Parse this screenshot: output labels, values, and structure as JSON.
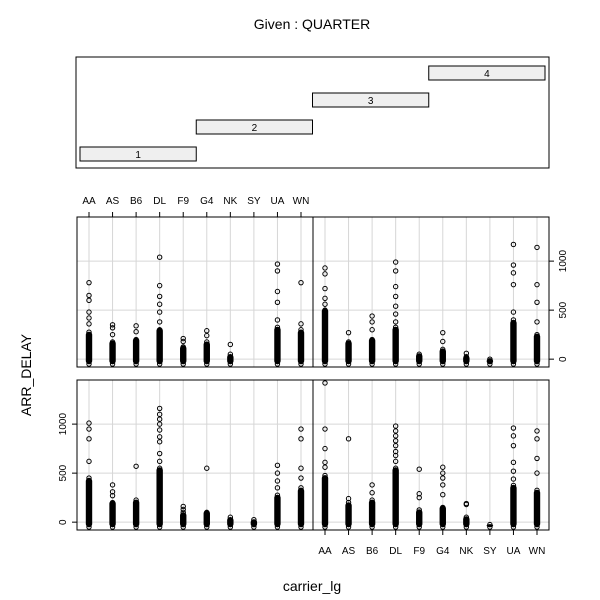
{
  "chart_data": {
    "type": "scatter",
    "given": {
      "title": "Given : QUARTER",
      "levels": [
        "1",
        "2",
        "3",
        "4"
      ]
    },
    "xlabel": "carrier_lg",
    "ylabel": "ARR_DELAY",
    "categories": [
      "AA",
      "AS",
      "B6",
      "DL",
      "F9",
      "G4",
      "NK",
      "SY",
      "UA",
      "WN"
    ],
    "ylim": [
      -80,
      1450
    ],
    "yticks": [
      0,
      500,
      1000
    ],
    "grid": true,
    "panels": [
      {
        "quarter": "1",
        "position": "bottom-left",
        "series": [
          {
            "category": "AA",
            "max": 1010,
            "dense_to": 450,
            "outliers": [
              620,
              850,
              950,
              1010
            ]
          },
          {
            "category": "AS",
            "max": 380,
            "dense_to": 220,
            "outliers": [
              270,
              310,
              380
            ]
          },
          {
            "category": "B6",
            "max": 570,
            "dense_to": 230,
            "outliers": [
              570
            ]
          },
          {
            "category": "DL",
            "max": 1160,
            "dense_to": 560,
            "outliers": [
              620,
              700,
              820,
              870,
              940,
              1000,
              1050,
              1100,
              1160
            ]
          },
          {
            "category": "F9",
            "max": 160,
            "dense_to": 100,
            "outliers": [
              130,
              160
            ]
          },
          {
            "category": "G4",
            "max": 550,
            "dense_to": 120,
            "outliers": [
              550
            ]
          },
          {
            "category": "NK",
            "max": 60,
            "dense_to": 50,
            "outliers": []
          },
          {
            "category": "SY",
            "max": 40,
            "dense_to": 30,
            "outliers": []
          },
          {
            "category": "UA",
            "max": 580,
            "dense_to": 280,
            "outliers": [
              350,
              420,
              500,
              580
            ]
          },
          {
            "category": "WN",
            "max": 950,
            "dense_to": 350,
            "outliers": [
              450,
              550,
              850,
              950
            ]
          }
        ]
      },
      {
        "quarter": "2",
        "position": "bottom-right",
        "series": [
          {
            "category": "AA",
            "max": 1420,
            "dense_to": 480,
            "outliers": [
              560,
              610,
              750,
              950,
              1420
            ]
          },
          {
            "category": "AS",
            "max": 850,
            "dense_to": 200,
            "outliers": [
              240,
              850
            ]
          },
          {
            "category": "B6",
            "max": 380,
            "dense_to": 230,
            "outliers": [
              300,
              380
            ]
          },
          {
            "category": "DL",
            "max": 980,
            "dense_to": 560,
            "outliers": [
              620,
              680,
              720,
              780,
              830,
              880,
              930,
              980
            ]
          },
          {
            "category": "F9",
            "max": 540,
            "dense_to": 130,
            "outliers": [
              250,
              290,
              540
            ]
          },
          {
            "category": "G4",
            "max": 560,
            "dense_to": 170,
            "outliers": [
              280,
              380,
              450,
              500,
              560
            ]
          },
          {
            "category": "NK",
            "max": 190,
            "dense_to": 60,
            "outliers": [
              180,
              190
            ]
          },
          {
            "category": "SY",
            "max": -10,
            "dense_to": -20,
            "outliers": []
          },
          {
            "category": "UA",
            "max": 960,
            "dense_to": 380,
            "outliers": [
              440,
              520,
              610,
              780,
              880,
              960
            ]
          },
          {
            "category": "WN",
            "max": 930,
            "dense_to": 330,
            "outliers": [
              500,
              650,
              850,
              930
            ]
          }
        ]
      },
      {
        "quarter": "3",
        "position": "top-left",
        "series": [
          {
            "category": "AA",
            "max": 780,
            "dense_to": 280,
            "outliers": [
              360,
              420,
              480,
              600,
              650,
              780
            ]
          },
          {
            "category": "AS",
            "max": 350,
            "dense_to": 190,
            "outliers": [
              250,
              320,
              350
            ]
          },
          {
            "category": "B6",
            "max": 340,
            "dense_to": 220,
            "outliers": [
              280,
              340
            ]
          },
          {
            "category": "DL",
            "max": 1040,
            "dense_to": 320,
            "outliers": [
              380,
              480,
              560,
              640,
              750,
              1040
            ]
          },
          {
            "category": "F9",
            "max": 210,
            "dense_to": 140,
            "outliers": [
              180,
              210
            ]
          },
          {
            "category": "G4",
            "max": 290,
            "dense_to": 180,
            "outliers": [
              240,
              290
            ]
          },
          {
            "category": "NK",
            "max": 150,
            "dense_to": 50,
            "outliers": [
              150
            ]
          },
          {
            "category": "SY",
            "max": null,
            "dense_to": null,
            "outliers": []
          },
          {
            "category": "UA",
            "max": 970,
            "dense_to": 330,
            "outliers": [
              400,
              580,
              690,
              900,
              970
            ]
          },
          {
            "category": "WN",
            "max": 780,
            "dense_to": 300,
            "outliers": [
              360,
              780
            ]
          }
        ]
      },
      {
        "quarter": "4",
        "position": "top-right",
        "series": [
          {
            "category": "AA",
            "max": 930,
            "dense_to": 520,
            "outliers": [
              560,
              620,
              720,
              870,
              930
            ]
          },
          {
            "category": "AS",
            "max": 270,
            "dense_to": 190,
            "outliers": [
              270
            ]
          },
          {
            "category": "B6",
            "max": 440,
            "dense_to": 220,
            "outliers": [
              300,
              380,
              440
            ]
          },
          {
            "category": "DL",
            "max": 990,
            "dense_to": 330,
            "outliers": [
              380,
              460,
              540,
              640,
              740,
              900,
              990
            ]
          },
          {
            "category": "F9",
            "max": 70,
            "dense_to": 60,
            "outliers": []
          },
          {
            "category": "G4",
            "max": 270,
            "dense_to": 110,
            "outliers": [
              180,
              270
            ]
          },
          {
            "category": "NK",
            "max": 60,
            "dense_to": 40,
            "outliers": [
              60
            ]
          },
          {
            "category": "SY",
            "max": 20,
            "dense_to": 10,
            "outliers": []
          },
          {
            "category": "UA",
            "max": 1170,
            "dense_to": 400,
            "outliers": [
              480,
              760,
              880,
              960,
              1170
            ]
          },
          {
            "category": "WN",
            "max": 1140,
            "dense_to": 260,
            "outliers": [
              380,
              580,
              760,
              1140
            ]
          }
        ]
      }
    ]
  }
}
